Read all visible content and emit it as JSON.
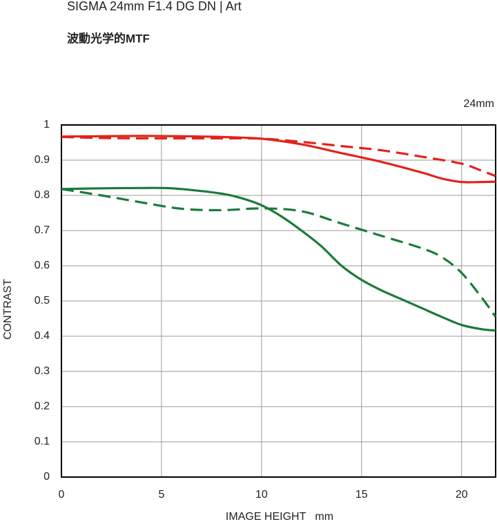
{
  "chart_data": {
    "type": "line",
    "title": "SIGMA 24mm F1.4 DG DN | Art",
    "subtitle": "波動光学的MTF",
    "annotation": "24mm",
    "ylabel": "CONTRAST",
    "xlabel": "IMAGE HEIGHT   mm",
    "xlim": [
      0,
      21.7
    ],
    "ylim": [
      0,
      1
    ],
    "xticks": [
      0,
      5,
      10,
      15,
      20
    ],
    "yticks": [
      0,
      0.1,
      0.2,
      0.3,
      0.4,
      0.5,
      0.6,
      0.7,
      0.8,
      0.9,
      1
    ],
    "grid": true,
    "series": [
      {
        "color": "#e2231a",
        "dash": false,
        "x": [
          0,
          2,
          4,
          6,
          8,
          10,
          12,
          14,
          16,
          18,
          19,
          20,
          21,
          21.7
        ],
        "values": [
          0.967,
          0.968,
          0.969,
          0.968,
          0.966,
          0.961,
          0.945,
          0.92,
          0.895,
          0.865,
          0.848,
          0.838,
          0.838,
          0.839
        ]
      },
      {
        "color": "#e2231a",
        "dash": true,
        "x": [
          0,
          2,
          4,
          6,
          8,
          10,
          12,
          14,
          16,
          18,
          20,
          21,
          21.7
        ],
        "values": [
          0.966,
          0.963,
          0.962,
          0.962,
          0.962,
          0.961,
          0.952,
          0.94,
          0.928,
          0.91,
          0.89,
          0.87,
          0.855
        ]
      },
      {
        "color": "#1a7a3a",
        "dash": false,
        "x": [
          0,
          2,
          4,
          5,
          6,
          8,
          9,
          10,
          11,
          12,
          13,
          14,
          15,
          16,
          17,
          18,
          19,
          20,
          21,
          21.7
        ],
        "values": [
          0.818,
          0.82,
          0.821,
          0.821,
          0.818,
          0.805,
          0.792,
          0.772,
          0.74,
          0.7,
          0.655,
          0.6,
          0.56,
          0.53,
          0.505,
          0.48,
          0.455,
          0.432,
          0.42,
          0.416
        ]
      },
      {
        "color": "#1a7a3a",
        "dash": true,
        "x": [
          0,
          2,
          4,
          6,
          8,
          10,
          12,
          14,
          16,
          18,
          19,
          20,
          21,
          21.7
        ],
        "values": [
          0.818,
          0.8,
          0.78,
          0.762,
          0.758,
          0.763,
          0.755,
          0.72,
          0.685,
          0.65,
          0.625,
          0.58,
          0.51,
          0.455
        ]
      }
    ]
  }
}
